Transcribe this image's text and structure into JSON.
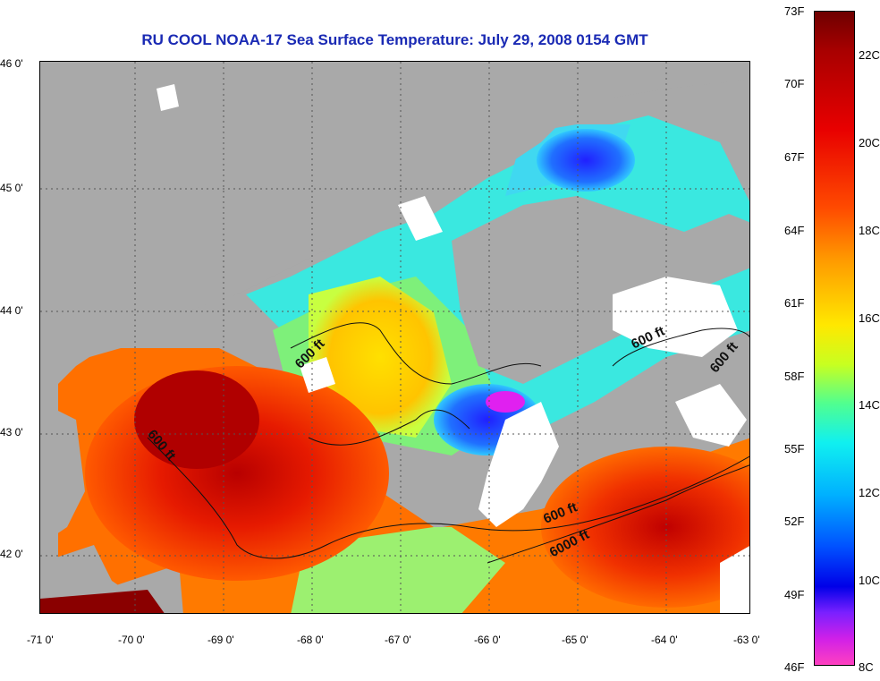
{
  "title": "RU COOL  NOAA-17  Sea Surface Temperature:  July 29, 2008 0154 GMT",
  "lat_labels": [
    "46 0'",
    "45 0'",
    "44 0'",
    "43 0'",
    "42 0'"
  ],
  "lon_labels": [
    "-71 0'",
    "-70 0'",
    "-69 0'",
    "-68 0'",
    "-67 0'",
    "-66 0'",
    "-65 0'",
    "-64 0'",
    "-63 0'"
  ],
  "depth_labels": [
    "600 ft",
    "600 ft",
    "600 ft",
    "600 ft",
    "600 ft",
    "6000 ft"
  ],
  "colorbar": {
    "fahrenheit": [
      "73F",
      "70F",
      "67F",
      "64F",
      "61F",
      "58F",
      "55F",
      "52F",
      "49F",
      "46F"
    ],
    "celsius": [
      "22C",
      "20C",
      "18C",
      "16C",
      "14C",
      "12C",
      "10C",
      "8C"
    ]
  },
  "colors": {
    "title": "#1a2ab4",
    "land": "#a9a9a9",
    "warm": "#e01000",
    "cool": "#20e0f0",
    "cloud": "#ffffff"
  }
}
